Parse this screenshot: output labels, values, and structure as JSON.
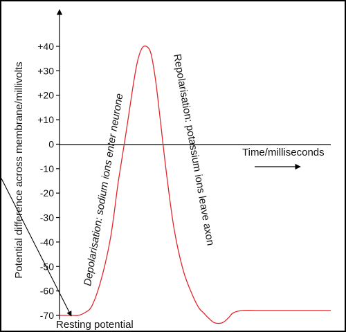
{
  "chart_data": {
    "type": "line",
    "ylabel": "Potential difference across membrane/millivolts",
    "xlabel": "Time/milliseconds",
    "ylim": [
      -70,
      40
    ],
    "yticks": [
      {
        "value": 40,
        "label": "+40"
      },
      {
        "value": 30,
        "label": "+30"
      },
      {
        "value": 20,
        "label": "+20"
      },
      {
        "value": 10,
        "label": "+10"
      },
      {
        "value": 0,
        "label": "0"
      },
      {
        "value": -10,
        "label": "-10"
      },
      {
        "value": -20,
        "label": "-20"
      },
      {
        "value": -30,
        "label": "-30"
      },
      {
        "value": -40,
        "label": "-40"
      },
      {
        "value": -50,
        "label": "-50"
      },
      {
        "value": -60,
        "label": "-60"
      },
      {
        "value": -70,
        "label": "-70"
      }
    ],
    "series": [
      {
        "color": "#e0262b",
        "t": [
          0.0,
          0.08,
          0.12,
          0.16,
          0.21,
          0.27,
          0.33,
          0.38,
          0.43,
          0.47,
          0.5,
          0.53,
          0.56,
          0.59,
          0.62,
          0.65,
          0.69,
          0.74,
          0.8,
          0.86,
          0.9,
          0.93,
          0.96,
          1.0,
          1.05,
          1.09,
          1.12,
          1.18,
          1.3,
          1.5,
          1.75
        ],
        "mv": [
          -70,
          -70,
          -70,
          -69,
          -66,
          -55,
          -38,
          -15,
          5,
          22,
          33,
          39,
          40,
          37,
          26,
          10,
          -12,
          -35,
          -52,
          -62,
          -67,
          -69,
          -71,
          -73,
          -73,
          -71,
          -69,
          -68,
          -68,
          -68,
          -68
        ]
      }
    ],
    "annotations": {
      "depolarisation": "Depolarisation: sodium ions enter neurone",
      "repolarisation": "Repolarisation: potassium ions leave axon",
      "resting": "Resting potential"
    }
  },
  "colors": {
    "curve": "#e0262b",
    "axis": "#000000"
  }
}
